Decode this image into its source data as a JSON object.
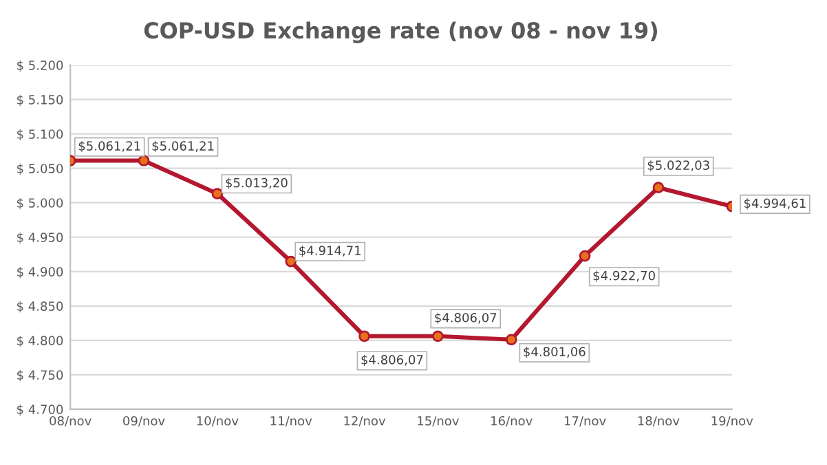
{
  "chart_data": {
    "type": "line",
    "title": "COP-USD Exchange rate (nov 08 - nov 19)",
    "categories": [
      "08/nov",
      "09/nov",
      "10/nov",
      "11/nov",
      "12/nov",
      "15/nov",
      "16/nov",
      "17/nov",
      "18/nov",
      "19/nov"
    ],
    "series": [
      {
        "color": "#b3182e",
        "values": [
          5061.21,
          5061.21,
          5013.2,
          4914.71,
          4806.07,
          4806.07,
          4801.06,
          4922.7,
          5022.03,
          4994.61
        ],
        "value_labels": [
          "$5.061,21",
          "$5.061,21",
          "$5.013,20",
          "$4.914,71",
          "$4.806,07",
          "$4.806,07",
          "$4.801,06",
          "$4.922,70",
          "$5.022,03",
          "$4.994,61"
        ]
      }
    ],
    "ylim": [
      4700,
      5200
    ],
    "yticks": [
      {
        "value": 4700,
        "label": "$ 4.700"
      },
      {
        "value": 4750,
        "label": "$ 4.750"
      },
      {
        "value": 4800,
        "label": "$ 4.800"
      },
      {
        "value": 4850,
        "label": "$ 4.850"
      },
      {
        "value": 4900,
        "label": "$ 4.900"
      },
      {
        "value": 4950,
        "label": "$ 4.950"
      },
      {
        "value": 5000,
        "label": "$ 5.000"
      },
      {
        "value": 5050,
        "label": "$ 5.050"
      },
      {
        "value": 5100,
        "label": "$ 5.100"
      },
      {
        "value": 5150,
        "label": "$ 5.150"
      },
      {
        "value": 5200,
        "label": "$ 5.200"
      }
    ],
    "grid": "y",
    "marker": "circle",
    "line_style": "solid"
  }
}
